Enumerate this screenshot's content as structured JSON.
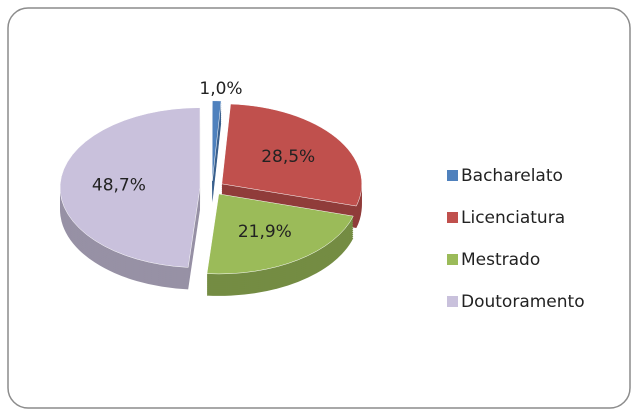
{
  "chart_data": {
    "type": "pie",
    "categories": [
      "Bacharelato",
      "Licenciatura",
      "Mestrado",
      "Doutoramento"
    ],
    "values": [
      1.0,
      28.5,
      21.9,
      48.7
    ],
    "value_labels": [
      "1,0%",
      "28,5%",
      "21,9%",
      "48,7%"
    ],
    "colors": [
      "#4f81bd",
      "#c0504d",
      "#9bbb59",
      "#c9c1dc"
    ],
    "legend": "right"
  }
}
